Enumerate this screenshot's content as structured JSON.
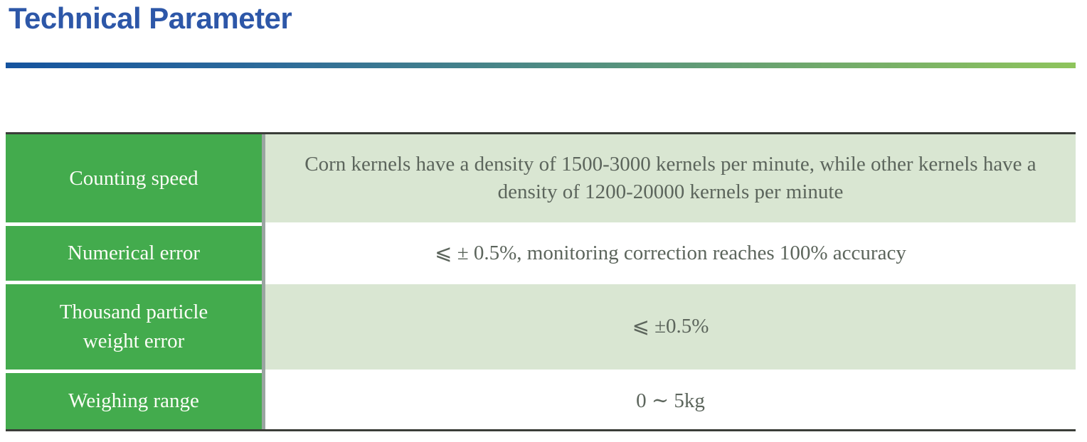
{
  "header": {
    "title": "Technical Parameter"
  },
  "palette": {
    "title_blue": "#2d57a8",
    "divider_gradient_start": "#15549f",
    "divider_gradient_end": "#8ec45c",
    "cell_green": "#43ab4d",
    "cell_light_green": "#d9e6d2",
    "value_text_gray": "#5c655c",
    "table_border_dark": "#3a3d38",
    "column_gutter_gray": "#9aa5a1"
  },
  "table": {
    "rows": [
      {
        "label": "Counting speed",
        "value": "Corn kernels have a density of 1500-3000 kernels per minute, while other kernels have a density of 1200-20000 kernels per minute"
      },
      {
        "label": "Numerical error",
        "value": "⩽ ± 0.5%, monitoring correction reaches 100% accuracy"
      },
      {
        "label": "Thousand particle weight error",
        "value": "⩽ ±0.5%"
      },
      {
        "label": "Weighing range",
        "value": "0 ∼ 5kg"
      }
    ]
  }
}
